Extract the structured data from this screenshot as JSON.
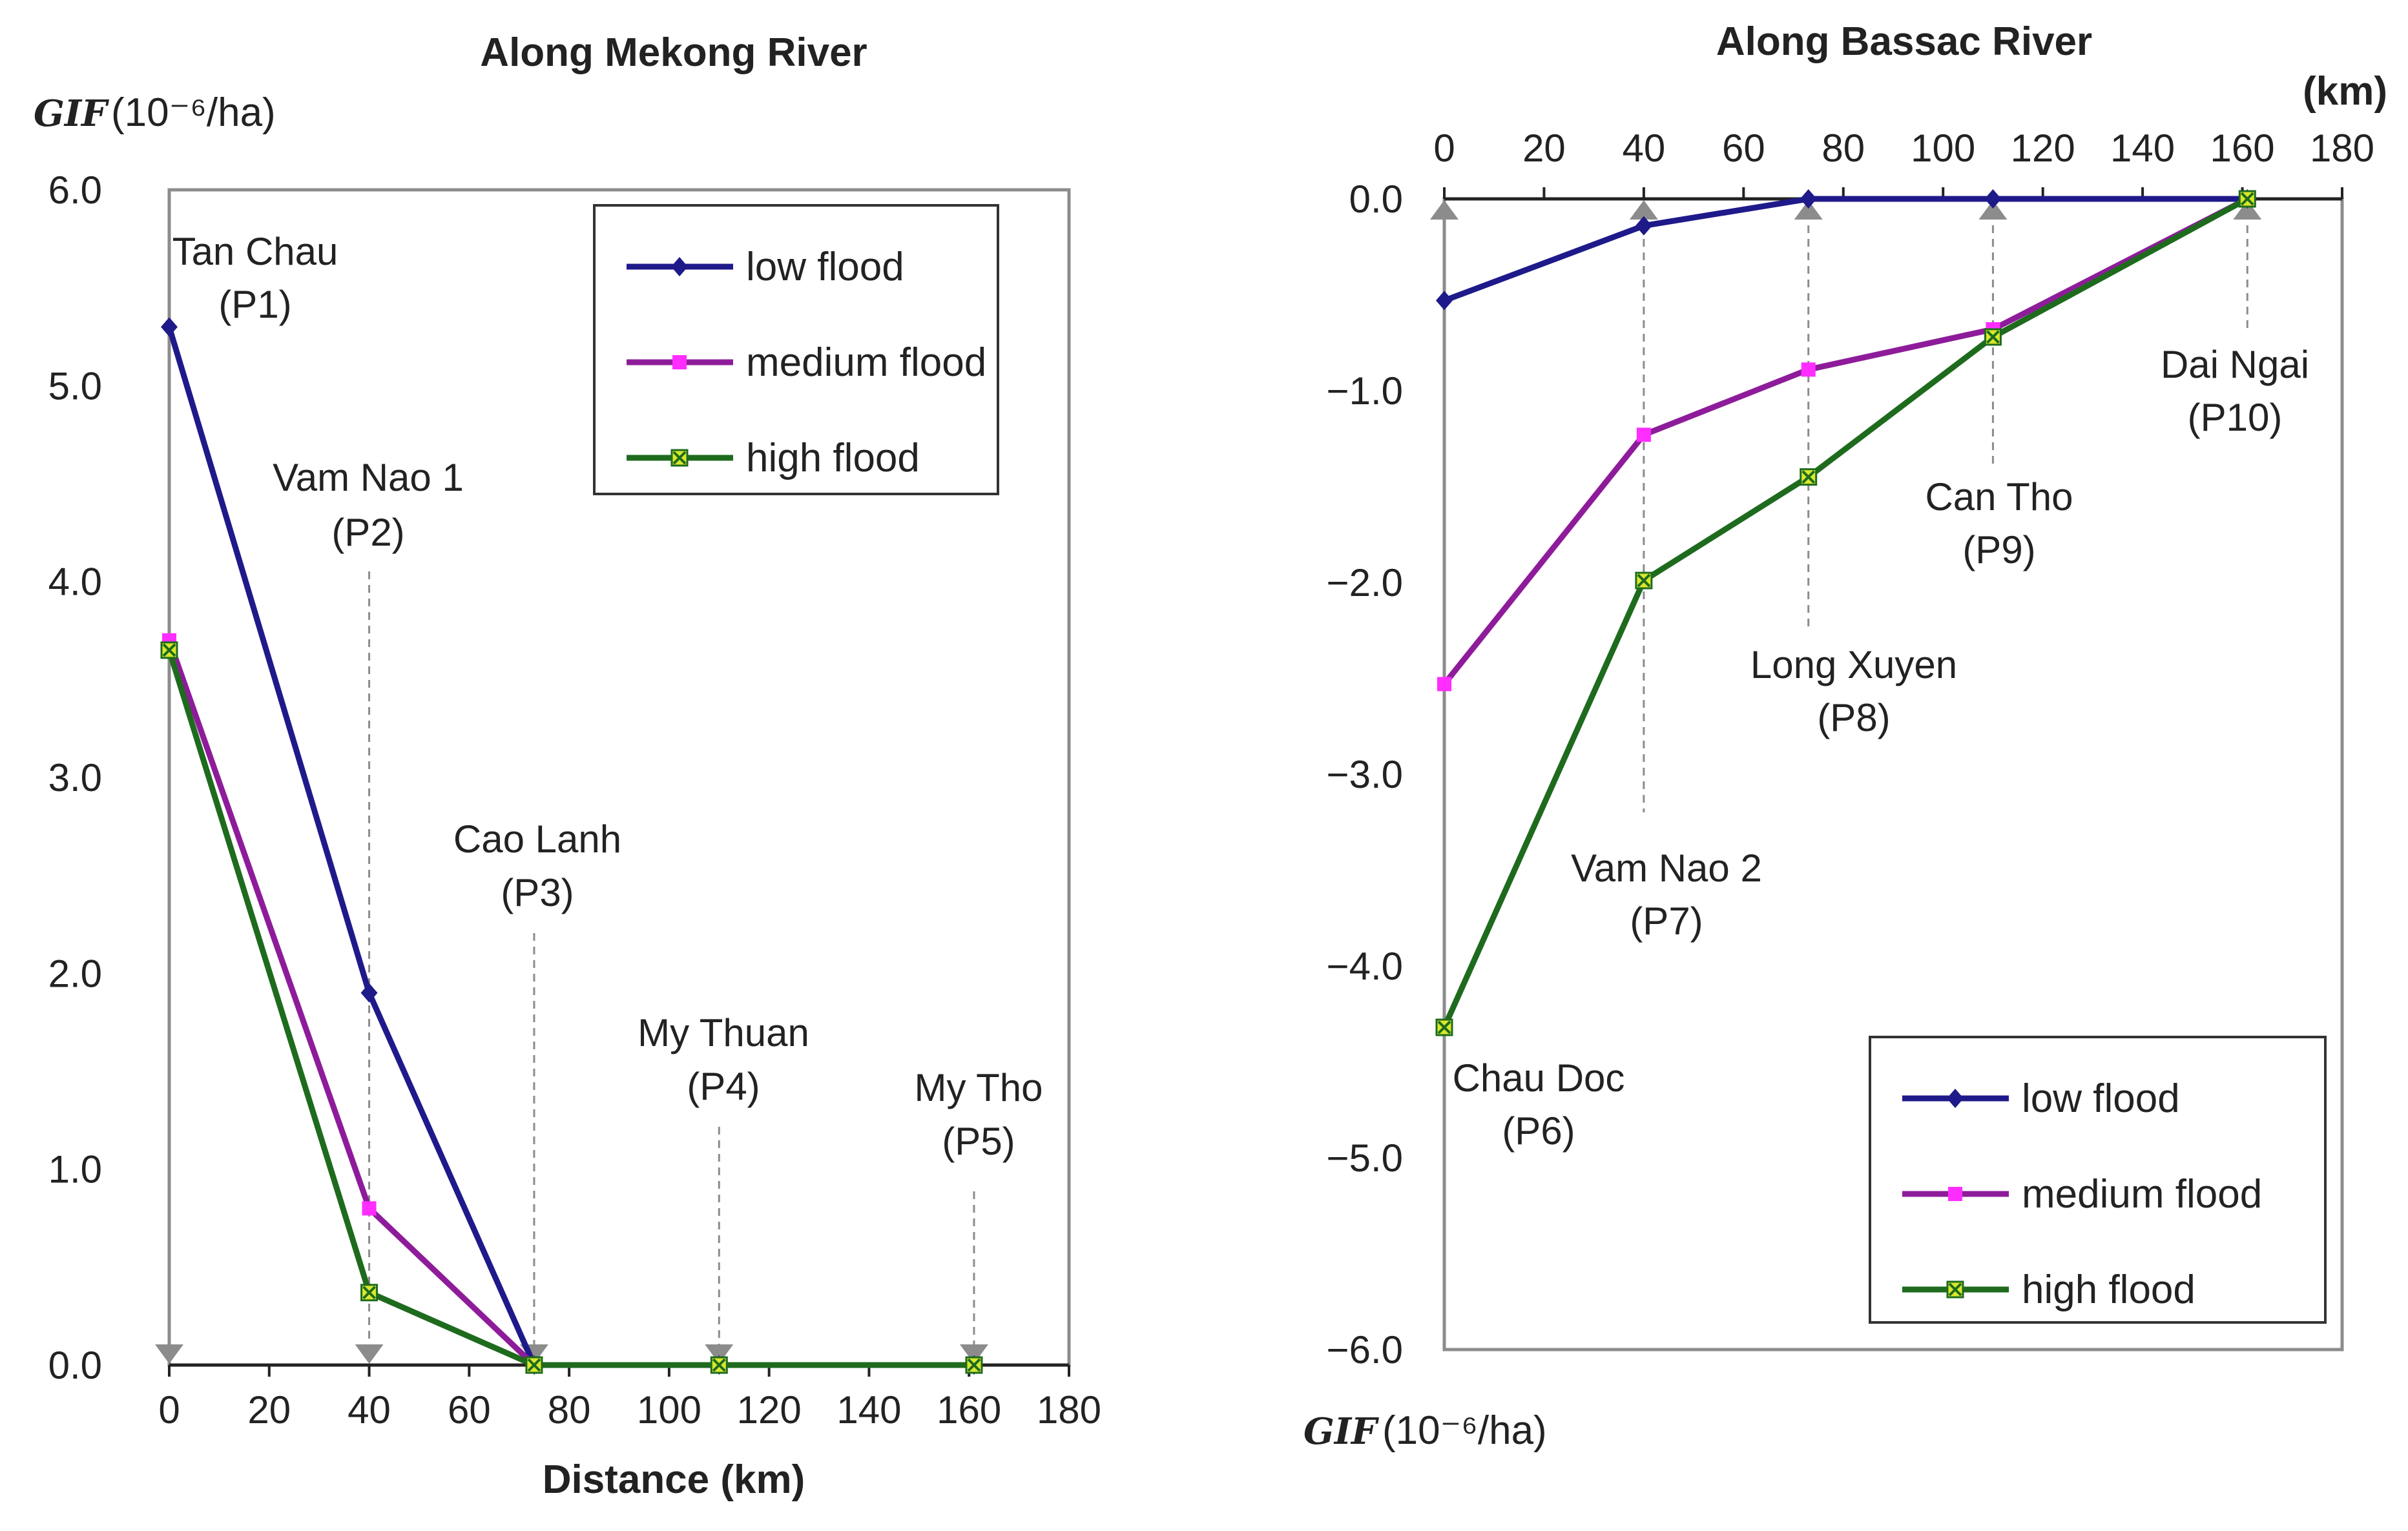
{
  "colors": {
    "low": "#1f1a8a",
    "medium": "#8e1c9a",
    "high": "#1e6b1e",
    "frame": "#8c8c8c",
    "arrow": "#8c8c8c",
    "medium_marker": "#ff2dff",
    "high_marker": "#d9e82a"
  },
  "chart_data": [
    {
      "type": "line",
      "title": "Along Mekong River",
      "ylabel_prefix": "GIF",
      "ylabel_unit": "(10⁻⁶/ha)",
      "xlabel": "Distance (km)",
      "xlim": [
        0,
        180
      ],
      "ylim": [
        0,
        6
      ],
      "x_ticks": [
        "0",
        "20",
        "40",
        "60",
        "80",
        "100",
        "120",
        "140",
        "160",
        "180"
      ],
      "y_ticks": [
        "0.0",
        "1.0",
        "2.0",
        "3.0",
        "4.0",
        "5.0",
        "6.0"
      ],
      "legend": {
        "position": "top-right",
        "entries": [
          "low flood",
          "medium flood",
          "high flood"
        ]
      },
      "stations": [
        {
          "name": "Tan Chau",
          "id": "(P1)",
          "x": 0
        },
        {
          "name": "Vam Nao 1",
          "id": "(P2)",
          "x": 40
        },
        {
          "name": "Cao Lanh",
          "id": "(P3)",
          "x": 73
        },
        {
          "name": "My Thuan",
          "id": "(P4)",
          "x": 110
        },
        {
          "name": "My Tho",
          "id": "(P5)",
          "x": 161
        }
      ],
      "series": [
        {
          "name": "low flood",
          "x": [
            0,
            40,
            73,
            110,
            161
          ],
          "values": [
            5.3,
            1.9,
            0.0,
            0.0,
            0.0
          ]
        },
        {
          "name": "medium flood",
          "x": [
            0,
            40,
            73,
            110,
            161
          ],
          "values": [
            3.7,
            0.8,
            0.0,
            0.0,
            0.0
          ]
        },
        {
          "name": "high flood",
          "x": [
            0,
            40,
            73,
            110,
            161
          ],
          "values": [
            3.65,
            0.37,
            0.0,
            0.0,
            0.0
          ]
        }
      ]
    },
    {
      "type": "line",
      "title": "Along Bassac River",
      "ylabel_prefix": "GIF",
      "ylabel_unit": "(10⁻⁶/ha)",
      "xlabel": "(km)",
      "x_axis_position": "top",
      "xlim": [
        0,
        180
      ],
      "ylim": [
        -6,
        0
      ],
      "x_ticks": [
        "0",
        "20",
        "40",
        "60",
        "80",
        "100",
        "120",
        "140",
        "160",
        "180"
      ],
      "y_ticks": [
        "0.0",
        "−1.0",
        "−2.0",
        "−3.0",
        "−4.0",
        "−5.0",
        "−6.0"
      ],
      "legend": {
        "position": "bottom-right",
        "entries": [
          "low flood",
          "medium flood",
          "high flood"
        ]
      },
      "stations": [
        {
          "name": "Chau Doc",
          "id": "(P6)",
          "x": 0
        },
        {
          "name": "Vam Nao 2",
          "id": "(P7)",
          "x": 40
        },
        {
          "name": "Long Xuyen",
          "id": "(P8)",
          "x": 73
        },
        {
          "name": "Can Tho",
          "id": "(P9)",
          "x": 110
        },
        {
          "name": "Dai Ngai",
          "id": "(P10)",
          "x": 161
        }
      ],
      "series": [
        {
          "name": "low flood",
          "x": [
            0,
            40,
            73,
            110,
            161
          ],
          "values": [
            -0.53,
            -0.14,
            0.0,
            0.0,
            0.0
          ]
        },
        {
          "name": "medium flood",
          "x": [
            0,
            40,
            73,
            110,
            161
          ],
          "values": [
            -2.53,
            -1.23,
            -0.89,
            -0.68,
            0.0
          ]
        },
        {
          "name": "high flood",
          "x": [
            0,
            40,
            73,
            110,
            161
          ],
          "values": [
            -4.32,
            -1.99,
            -1.45,
            -0.72,
            0.0
          ]
        }
      ]
    }
  ]
}
